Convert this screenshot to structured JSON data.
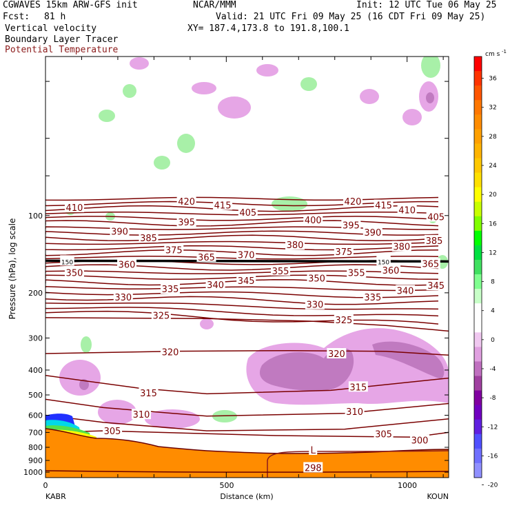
{
  "header": {
    "model": "CGWAVES 15km ARW-GFS init",
    "org": "NCAR/MMM",
    "init": "Init: 12 UTC Tue 06 May 25",
    "fcst_label": "Fcst:",
    "fcst_value": "81 h",
    "valid": "Valid: 21 UTC Fri 09 May 25 (16 CDT Fri 09 May 25)",
    "field1": "Vertical velocity",
    "xy": "XY= 187.4,173.8 to 191.8,100.1",
    "field2": "Boundary Layer Tracer",
    "field3": "Potential Temperature"
  },
  "colors": {
    "theta_line": "#7a0000",
    "terrain": "#ff8c00",
    "updraft": "#90ee90",
    "downdraft": "#e6a0e6"
  },
  "chart_data": {
    "type": "heatmap",
    "xlabel": "Distance (km)",
    "ylabel": "Pressure (hPa), log scale",
    "x_ticks": [
      "0",
      "500",
      "1000"
    ],
    "y_ticks": [
      "100",
      "200",
      "300",
      "400",
      "500",
      "600",
      "700",
      "800",
      "900",
      "1000"
    ],
    "left_station": "KABR",
    "right_station": "KOUN",
    "colorbar": {
      "unit": "cm s",
      "unit_exp": "-1",
      "ticks": [
        "36",
        "32",
        "28",
        "24",
        "20",
        "16",
        "12",
        "8",
        "4",
        "0",
        "-4",
        "-8",
        "-12",
        "-16",
        "-20"
      ],
      "colors": [
        "#ff0000",
        "#ff3300",
        "#ff5500",
        "#ff7700",
        "#ff8c00",
        "#ffa000",
        "#ffb400",
        "#ffc800",
        "#ffe000",
        "#ffff00",
        "#c8ff00",
        "#80ff00",
        "#00ff00",
        "#00e040",
        "#40e060",
        "#80ff90",
        "#c8ffc8",
        "#ffffff",
        "#ffffff",
        "#f0c8f0",
        "#e0a0e0",
        "#c070c0",
        "#a040a0",
        "#8000a0",
        "#7000c0",
        "#6020e0",
        "#5050ff",
        "#7070ff",
        "#9090ff"
      ]
    },
    "theta_labels": [
      {
        "value": "420",
        "x_km": 390,
        "p": 88
      },
      {
        "value": "415",
        "x_km": 490,
        "p": 91
      },
      {
        "value": "405",
        "x_km": 560,
        "p": 97
      },
      {
        "value": "410",
        "x_km": 80,
        "p": 93
      },
      {
        "value": "420",
        "x_km": 850,
        "p": 88
      },
      {
        "value": "415",
        "x_km": 935,
        "p": 91
      },
      {
        "value": "410",
        "x_km": 1000,
        "p": 95
      },
      {
        "value": "405",
        "x_km": 1080,
        "p": 101
      },
      {
        "value": "395",
        "x_km": 390,
        "p": 106
      },
      {
        "value": "400",
        "x_km": 740,
        "p": 104
      },
      {
        "value": "395",
        "x_km": 845,
        "p": 109
      },
      {
        "value": "390",
        "x_km": 205,
        "p": 115
      },
      {
        "value": "390",
        "x_km": 905,
        "p": 116
      },
      {
        "value": "385",
        "x_km": 285,
        "p": 122
      },
      {
        "value": "385",
        "x_km": 1075,
        "p": 125
      },
      {
        "value": "380",
        "x_km": 690,
        "p": 130
      },
      {
        "value": "380",
        "x_km": 985,
        "p": 132
      },
      {
        "value": "375",
        "x_km": 355,
        "p": 136
      },
      {
        "value": "375",
        "x_km": 825,
        "p": 138
      },
      {
        "value": "370",
        "x_km": 555,
        "p": 142
      },
      {
        "value": "365",
        "x_km": 445,
        "p": 145
      },
      {
        "value": "360",
        "x_km": 225,
        "p": 155
      },
      {
        "value": "365",
        "x_km": 1065,
        "p": 154
      },
      {
        "value": "360",
        "x_km": 955,
        "p": 163
      },
      {
        "value": "355",
        "x_km": 650,
        "p": 164
      },
      {
        "value": "355",
        "x_km": 860,
        "p": 167
      },
      {
        "value": "350",
        "x_km": 80,
        "p": 167
      },
      {
        "value": "350",
        "x_km": 750,
        "p": 175
      },
      {
        "value": "345",
        "x_km": 555,
        "p": 179
      },
      {
        "value": "345",
        "x_km": 1080,
        "p": 187
      },
      {
        "value": "340",
        "x_km": 470,
        "p": 186
      },
      {
        "value": "340",
        "x_km": 995,
        "p": 196
      },
      {
        "value": "335",
        "x_km": 345,
        "p": 193
      },
      {
        "value": "335",
        "x_km": 905,
        "p": 208
      },
      {
        "value": "330",
        "x_km": 215,
        "p": 208
      },
      {
        "value": "330",
        "x_km": 745,
        "p": 222
      },
      {
        "value": "325",
        "x_km": 320,
        "p": 245
      },
      {
        "value": "325",
        "x_km": 825,
        "p": 255
      },
      {
        "value": "320",
        "x_km": 345,
        "p": 340
      },
      {
        "value": "320",
        "x_km": 805,
        "p": 345
      },
      {
        "value": "315",
        "x_km": 285,
        "p": 490
      },
      {
        "value": "315",
        "x_km": 865,
        "p": 465
      },
      {
        "value": "310",
        "x_km": 265,
        "p": 595
      },
      {
        "value": "310",
        "x_km": 855,
        "p": 580
      },
      {
        "value": "305",
        "x_km": 185,
        "p": 690
      },
      {
        "value": "305",
        "x_km": 935,
        "p": 710
      },
      {
        "value": "300",
        "x_km": 1035,
        "p": 750
      },
      {
        "value": "298",
        "x_km": 740,
        "p": 960
      },
      {
        "value": "L",
        "x_km": 740,
        "p": 820
      },
      {
        "value": "150",
        "x_km": 60,
        "p": 150
      },
      {
        "value": "150",
        "x_km": 935,
        "p": 150
      }
    ]
  }
}
